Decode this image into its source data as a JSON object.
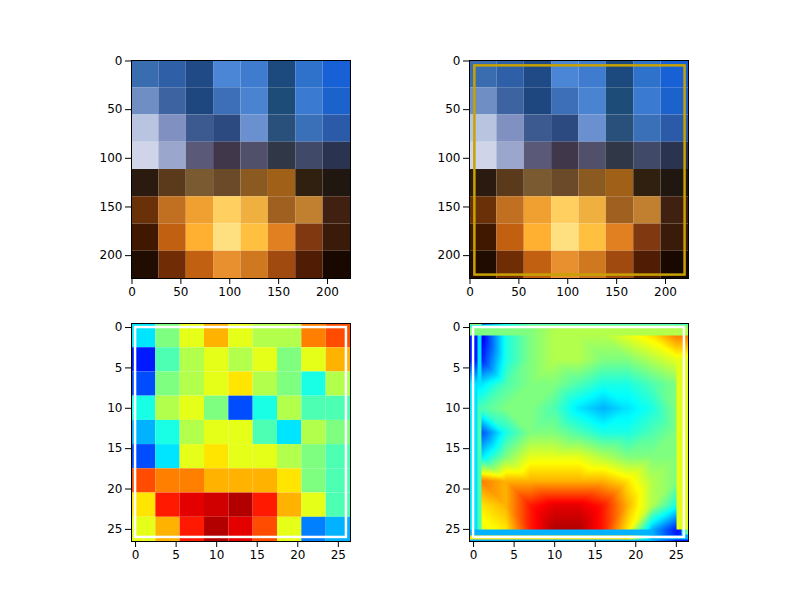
{
  "chart_data": [
    {
      "type": "image",
      "xlim": [
        -0.5,
        223.5
      ],
      "ylim": [
        223.5,
        -0.5
      ],
      "xticks": [
        0,
        50,
        100,
        150,
        200
      ],
      "yticks": [
        0,
        50,
        100,
        150,
        200
      ],
      "colors": [
        [
          "#3a6cb0",
          "#2f5fa6",
          "#1f4a86",
          "#4b86d6",
          "#3f7cd0",
          "#1d4a7e",
          "#2e72cc",
          "#1760d6"
        ],
        [
          "#6f8ec4",
          "#3d64a0",
          "#1e4780",
          "#3d6fb8",
          "#4a84d0",
          "#1e4c78",
          "#3a7ad0",
          "#1c62cc"
        ],
        [
          "#b8c4e0",
          "#8090c0",
          "#3c5a90",
          "#2c4a80",
          "#6a90d0",
          "#28507a",
          "#3a70b8",
          "#2a5aa8"
        ],
        [
          "#d0d4e8",
          "#9aa6cc",
          "#5a5a78",
          "#40384a",
          "#50506a",
          "#303848",
          "#404a68",
          "#2a3450"
        ],
        [
          "#2a1a10",
          "#5a3a1a",
          "#7a5a30",
          "#6a4a28",
          "#8a5a20",
          "#a06018",
          "#302010",
          "#201810"
        ],
        [
          "#6a3008",
          "#c07020",
          "#f0a030",
          "#ffd060",
          "#f0b040",
          "#a06020",
          "#c08030",
          "#402010"
        ],
        [
          "#401800",
          "#c06010",
          "#ffb030",
          "#ffe080",
          "#ffc040",
          "#e08020",
          "#803810",
          "#3a1a08"
        ],
        [
          "#200c00",
          "#702c04",
          "#c06010",
          "#e89030",
          "#d07820",
          "#a04a10",
          "#501c04",
          "#180800"
        ]
      ]
    },
    {
      "type": "image",
      "xlim": [
        -0.5,
        223.5
      ],
      "ylim": [
        223.5,
        -0.5
      ],
      "xticks": [
        0,
        50,
        100,
        150,
        200
      ],
      "yticks": [
        0,
        50,
        100,
        150,
        200
      ],
      "colors": [
        [
          "#3a6cb0",
          "#2f5fa6",
          "#1f4a86",
          "#4b86d6",
          "#3f7cd0",
          "#1d4a7e",
          "#2e72cc",
          "#1760d6"
        ],
        [
          "#6f8ec4",
          "#3d64a0",
          "#1e4780",
          "#3d6fb8",
          "#4a84d0",
          "#1e4c78",
          "#3a7ad0",
          "#1c62cc"
        ],
        [
          "#b8c4e0",
          "#8090c0",
          "#3c5a90",
          "#2c4a80",
          "#6a90d0",
          "#28507a",
          "#3a70b8",
          "#2a5aa8"
        ],
        [
          "#d0d4e8",
          "#9aa6cc",
          "#5a5a78",
          "#40384a",
          "#50506a",
          "#303848",
          "#404a68",
          "#2a3450"
        ],
        [
          "#2a1a10",
          "#5a3a1a",
          "#7a5a30",
          "#6a4a28",
          "#8a5a20",
          "#a06018",
          "#302010",
          "#201810"
        ],
        [
          "#6a3008",
          "#c07020",
          "#f0a030",
          "#ffd060",
          "#f0b040",
          "#a06020",
          "#c08030",
          "#402010"
        ],
        [
          "#401800",
          "#c06010",
          "#ffb030",
          "#ffe080",
          "#ffc040",
          "#e08020",
          "#803810",
          "#3a1a08"
        ],
        [
          "#200c00",
          "#702c04",
          "#c06010",
          "#e89030",
          "#d07820",
          "#a04a10",
          "#501c04",
          "#180800"
        ]
      ],
      "box": {
        "x1": 5,
        "y1": 5,
        "x2": 220,
        "y2": 220,
        "color": "#c8a200"
      }
    },
    {
      "type": "heatmap",
      "xlim": [
        -0.5,
        26.5
      ],
      "ylim": [
        26.5,
        -0.5
      ],
      "xticks": [
        0,
        5,
        10,
        15,
        20,
        25
      ],
      "yticks": [
        0,
        5,
        10,
        15,
        20,
        25
      ],
      "x": [
        1,
        4,
        7,
        10,
        13,
        16,
        19,
        22,
        25
      ],
      "y": [
        1,
        4,
        7,
        10,
        13,
        16,
        19,
        22,
        25
      ],
      "zlim": [
        0,
        1
      ],
      "cells": [
        [
          0.35,
          0.5,
          0.6,
          0.7,
          0.6,
          0.55,
          0.55,
          0.75,
          0.8
        ],
        [
          0.15,
          0.45,
          0.55,
          0.6,
          0.55,
          0.6,
          0.5,
          0.6,
          0.7
        ],
        [
          0.2,
          0.5,
          0.55,
          0.6,
          0.65,
          0.55,
          0.5,
          0.4,
          0.55
        ],
        [
          0.4,
          0.55,
          0.6,
          0.5,
          0.2,
          0.4,
          0.55,
          0.45,
          0.45
        ],
        [
          0.3,
          0.4,
          0.55,
          0.6,
          0.6,
          0.45,
          0.35,
          0.55,
          0.5
        ],
        [
          0.2,
          0.35,
          0.6,
          0.65,
          0.6,
          0.6,
          0.55,
          0.5,
          0.45
        ],
        [
          0.8,
          0.75,
          0.75,
          0.7,
          0.7,
          0.7,
          0.65,
          0.5,
          0.45
        ],
        [
          0.65,
          0.85,
          0.9,
          0.92,
          0.95,
          0.85,
          0.7,
          0.6,
          0.45
        ],
        [
          0.6,
          0.7,
          0.85,
          0.95,
          0.9,
          0.8,
          0.6,
          0.25,
          0.3
        ]
      ],
      "box": {
        "x1": 0,
        "y1": 0,
        "x2": 26,
        "y2": 26,
        "color": "#ffffff"
      }
    },
    {
      "type": "raster",
      "xlim": [
        -0.5,
        26.5
      ],
      "ylim": [
        26.5,
        -0.5
      ],
      "xticks": [
        0,
        5,
        10,
        15,
        20,
        25
      ],
      "yticks": [
        0,
        5,
        10,
        15,
        20,
        25
      ],
      "x": [
        1,
        4,
        7,
        10,
        13,
        16,
        19,
        22,
        25
      ],
      "y": [
        1,
        4,
        7,
        10,
        13,
        16,
        19,
        22,
        25
      ],
      "zlim": [
        0,
        1
      ],
      "cells": [
        [
          0.1,
          0.4,
          0.5,
          0.55,
          0.55,
          0.55,
          0.6,
          0.65,
          0.75
        ],
        [
          0.15,
          0.4,
          0.5,
          0.55,
          0.55,
          0.5,
          0.5,
          0.55,
          0.6
        ],
        [
          0.35,
          0.45,
          0.5,
          0.5,
          0.45,
          0.4,
          0.4,
          0.45,
          0.5
        ],
        [
          0.45,
          0.5,
          0.5,
          0.45,
          0.35,
          0.3,
          0.35,
          0.4,
          0.5
        ],
        [
          0.2,
          0.4,
          0.5,
          0.5,
          0.45,
          0.4,
          0.4,
          0.45,
          0.5
        ],
        [
          0.35,
          0.5,
          0.6,
          0.6,
          0.6,
          0.55,
          0.5,
          0.5,
          0.5
        ],
        [
          0.75,
          0.7,
          0.7,
          0.7,
          0.7,
          0.7,
          0.65,
          0.55,
          0.5
        ],
        [
          0.65,
          0.7,
          0.85,
          0.9,
          0.9,
          0.85,
          0.7,
          0.55,
          0.4
        ],
        [
          0.6,
          0.65,
          0.85,
          0.95,
          0.95,
          0.85,
          0.65,
          0.3,
          0.15
        ]
      ],
      "box": {
        "x1": 0,
        "y1": 0,
        "x2": 26,
        "y2": 26,
        "color": "#ffffff"
      }
    }
  ]
}
